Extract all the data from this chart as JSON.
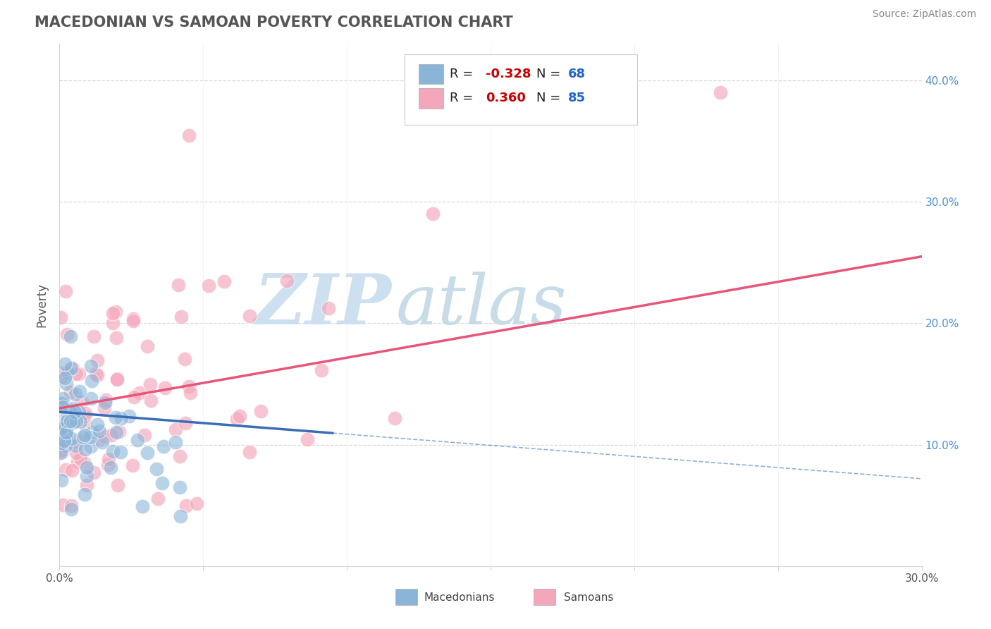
{
  "title": "MACEDONIAN VS SAMOAN POVERTY CORRELATION CHART",
  "source": "Source: ZipAtlas.com",
  "ylabel": "Poverty",
  "y_ticks": [
    0.0,
    0.1,
    0.2,
    0.3,
    0.4
  ],
  "y_tick_labels": [
    "",
    "10.0%",
    "20.0%",
    "30.0%",
    "40.0%"
  ],
  "xlim": [
    0.0,
    0.3
  ],
  "ylim": [
    0.0,
    0.43
  ],
  "macedonian_R": -0.328,
  "macedonian_N": 68,
  "samoan_R": 0.36,
  "samoan_N": 85,
  "blue_color": "#8ab4d8",
  "pink_color": "#f4a7bb",
  "blue_line_color": "#3a6db5",
  "pink_line_color": "#e8547a",
  "watermark_zip_color": "#cce0f0",
  "watermark_atlas_color": "#c8dce8",
  "background_color": "#ffffff",
  "grid_color": "#d5d5d5",
  "title_color": "#555555",
  "source_color": "#888888",
  "tick_color": "#555555",
  "right_tick_color": "#4a90d4",
  "legend_text_color": "#333333",
  "legend_r_color": "#cc0000",
  "legend_n_color": "#2266cc"
}
